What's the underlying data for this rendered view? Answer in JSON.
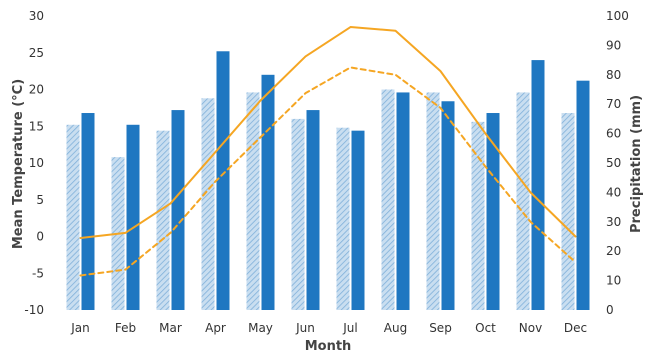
{
  "chart_data": {
    "type": "bar",
    "title": "",
    "xlabel": "Month",
    "ylabel_left": "Mean Temperature (°C)",
    "ylabel_right": "Precipitation (mm)",
    "categories": [
      "Jan",
      "Feb",
      "Mar",
      "Apr",
      "May",
      "Jun",
      "Jul",
      "Aug",
      "Sep",
      "Oct",
      "Nov",
      "Dec"
    ],
    "ylim_left": [
      -10,
      30
    ],
    "yticks_left": [
      "-10",
      "-5",
      "0",
      "5",
      "10",
      "15",
      "20",
      "25",
      "30"
    ],
    "ylim_right": [
      0,
      100
    ],
    "yticks_right": [
      "0",
      "10",
      "20",
      "30",
      "40",
      "50",
      "60",
      "70",
      "80",
      "90",
      "100"
    ],
    "bar_series": [
      {
        "style": "hatched",
        "color": "#a9cce8",
        "values": [
          63,
          52,
          61,
          72,
          74,
          65,
          62,
          75,
          74,
          64,
          74,
          67
        ]
      },
      {
        "style": "solid",
        "color": "#1f77c1",
        "values": [
          67,
          63,
          68,
          88,
          80,
          68,
          61,
          74,
          71,
          67,
          85,
          78
        ]
      }
    ],
    "line_series": [
      {
        "style": "solid",
        "color": "#f5a623",
        "values": [
          -0.2,
          0.5,
          4.5,
          11.5,
          18.5,
          24.5,
          28.5,
          28.0,
          22.5,
          14.0,
          6.0,
          0.0
        ]
      },
      {
        "style": "dashed",
        "color": "#f5a623",
        "values": [
          -5.3,
          -4.5,
          0.5,
          7.5,
          13.5,
          19.5,
          23.0,
          22.0,
          17.5,
          9.5,
          2.0,
          -3.5
        ]
      }
    ],
    "grid": false
  }
}
